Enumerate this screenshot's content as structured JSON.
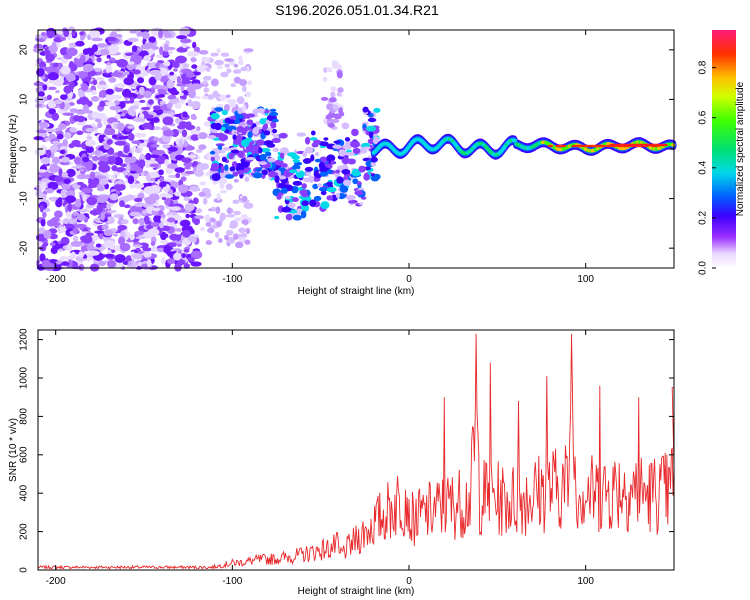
{
  "title": "S196.2026.051.01.34.R21",
  "colors": {
    "snr_line": "#e8282b",
    "axis": "#000000"
  },
  "spectrogram": {
    "xlabel": "Height of straight line (km)",
    "ylabel": "Frequency (Hz)",
    "xlim": [
      -210,
      150
    ],
    "ylim": [
      -24,
      24
    ],
    "xticks": [
      "-200",
      "-100",
      "0",
      "100"
    ],
    "xtick_values": [
      -200,
      -100,
      0,
      100
    ],
    "yticks": [
      "-20",
      "-10",
      "0",
      "10",
      "20"
    ],
    "ytick_values": [
      -20,
      -10,
      0,
      10,
      20
    ],
    "colorbar": {
      "label": "Normalized spectral amplitude",
      "range": [
        0,
        0.95
      ],
      "ticks": [
        "0.0",
        "0.2",
        "0.4",
        "0.6",
        "0.8"
      ],
      "tick_values": [
        0.0,
        0.2,
        0.4,
        0.6,
        0.8
      ]
    }
  },
  "chart_data": {
    "type": "line",
    "title": "S196.2026.051.01.34.R21",
    "xlabel": "Height of straight line (km)",
    "ylabel": "SNR (10 * v/v)",
    "xlim": [
      -210,
      150
    ],
    "ylim": [
      0,
      1250
    ],
    "xticks": [
      "-200",
      "-100",
      "0",
      "100"
    ],
    "xtick_values": [
      -200,
      -100,
      0,
      100
    ],
    "yticks": [
      "0",
      "200",
      "400",
      "600",
      "800",
      "1000",
      "1200"
    ],
    "ytick_values": [
      0,
      200,
      400,
      600,
      800,
      1000,
      1200
    ],
    "series": [
      {
        "name": "SNR",
        "x": [
          -210,
          -200,
          -190,
          -180,
          -170,
          -160,
          -150,
          -140,
          -130,
          -120,
          -115,
          -110,
          -105,
          -100,
          -95,
          -90,
          -85,
          -80,
          -75,
          -70,
          -65,
          -60,
          -55,
          -50,
          -45,
          -40,
          -35,
          -30,
          -25,
          -20,
          -15,
          -10,
          -5,
          0,
          5,
          10,
          15,
          20,
          25,
          30,
          35,
          38,
          40,
          45,
          50,
          55,
          60,
          65,
          70,
          75,
          80,
          85,
          90,
          92,
          95,
          100,
          105,
          110,
          115,
          120,
          125,
          130,
          135,
          140,
          145,
          148,
          150
        ],
        "values": [
          15,
          14,
          13,
          12,
          12,
          12,
          12,
          11,
          12,
          12,
          18,
          25,
          40,
          55,
          60,
          70,
          80,
          85,
          90,
          100,
          110,
          120,
          140,
          160,
          170,
          200,
          250,
          300,
          330,
          330,
          350,
          360,
          380,
          390,
          420,
          450,
          480,
          500,
          520,
          540,
          560,
          1230,
          580,
          590,
          560,
          550,
          560,
          580,
          600,
          620,
          640,
          660,
          680,
          1230,
          660,
          620,
          600,
          620,
          640,
          660,
          650,
          620,
          600,
          610,
          620,
          600,
          940
        ]
      }
    ]
  }
}
